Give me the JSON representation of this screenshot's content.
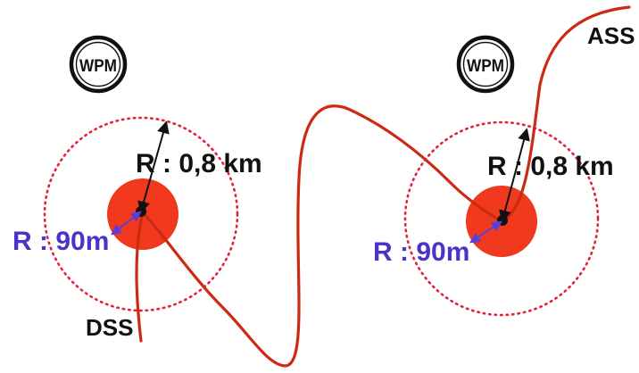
{
  "labels": {
    "wpm_left": "WPM",
    "wpm_right": "WPM",
    "radius_outer_left": "R : 0,8 km",
    "radius_outer_right": "R : 0,8 km",
    "radius_inner_left": "R : 90m",
    "radius_inner_right": "R : 90m",
    "dss": "DSS",
    "ass": "ASS"
  },
  "colors": {
    "route_line": "#cc2a14",
    "inner_zone_fill": "#f0391d",
    "outer_zone_dots": "#e0223c",
    "inner_radius_arrow": "#5a3fd6",
    "inner_radius_label": "#4a34c8",
    "outer_radius_arrow": "#111111",
    "label_text": "#111111",
    "background": "#ffffff"
  },
  "icons": {
    "wpm_left": "waypoint-marker-icon",
    "wpm_right": "waypoint-marker-icon"
  }
}
